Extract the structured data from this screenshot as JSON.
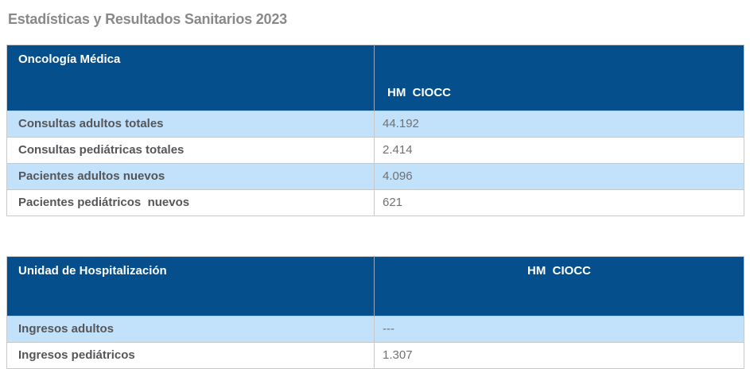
{
  "page": {
    "title": "Estadísticas y Resultados Sanitarios 2023"
  },
  "colors": {
    "header_blue": "#05508C",
    "row_light_blue": "#C2E1FA",
    "border_gray": "#C6C9CC",
    "title_gray": "#88898B",
    "label_gray": "#54565A",
    "value_gray": "#6F7173"
  },
  "tables": [
    {
      "title": "Oncología Médica",
      "column_header": "HM  CIOCC",
      "rows": [
        {
          "label": "Consultas adultos totales",
          "value": "44.192"
        },
        {
          "label": "Consultas pediátricas totales",
          "value": "2.414"
        },
        {
          "label": "Pacientes adultos nuevos",
          "value": "4.096"
        },
        {
          "label": "Pacientes pediátricos  nuevos",
          "value": "621"
        }
      ]
    },
    {
      "title": "Unidad de Hospitalización",
      "column_header": "HM  CIOCC",
      "rows": [
        {
          "label": "Ingresos adultos",
          "value": "---"
        },
        {
          "label": "Ingresos pediátricos",
          "value": "1.307"
        }
      ]
    }
  ]
}
